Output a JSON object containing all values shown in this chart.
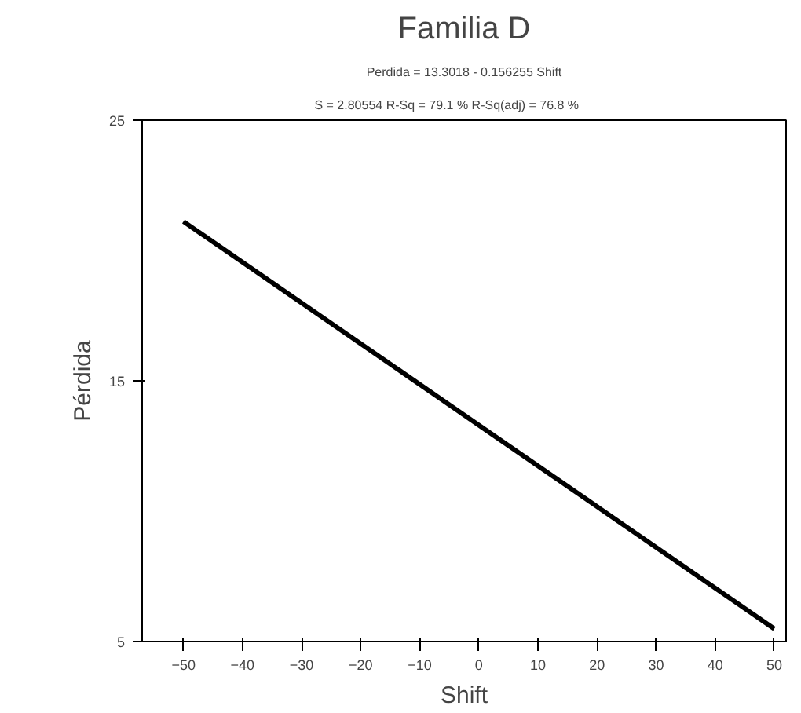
{
  "chart_data": {
    "type": "line",
    "title": "Familia D",
    "subtitle": "Perdida = 13.3018 - 0.156255 Shift",
    "annotations": [
      "S = 2.80554      R-Sq = 79.1 %      R-Sq(adj) = 76.8 %"
    ],
    "xlabel": "Shift",
    "ylabel": "Pérdida",
    "x": [
      -50,
      0,
      50
    ],
    "series": [
      {
        "color": "#000000",
        "values": [
          21.11,
          13.3,
          5.49
        ]
      }
    ],
    "xlim": [
      -57,
      52
    ],
    "ylim": [
      5,
      25
    ],
    "xticks": [
      -50,
      -40,
      -30,
      -20,
      -10,
      0,
      10,
      20,
      30,
      40,
      50
    ],
    "yticks": [
      5,
      15,
      25
    ],
    "grid": false,
    "marker": "none",
    "line_style": "solid"
  }
}
